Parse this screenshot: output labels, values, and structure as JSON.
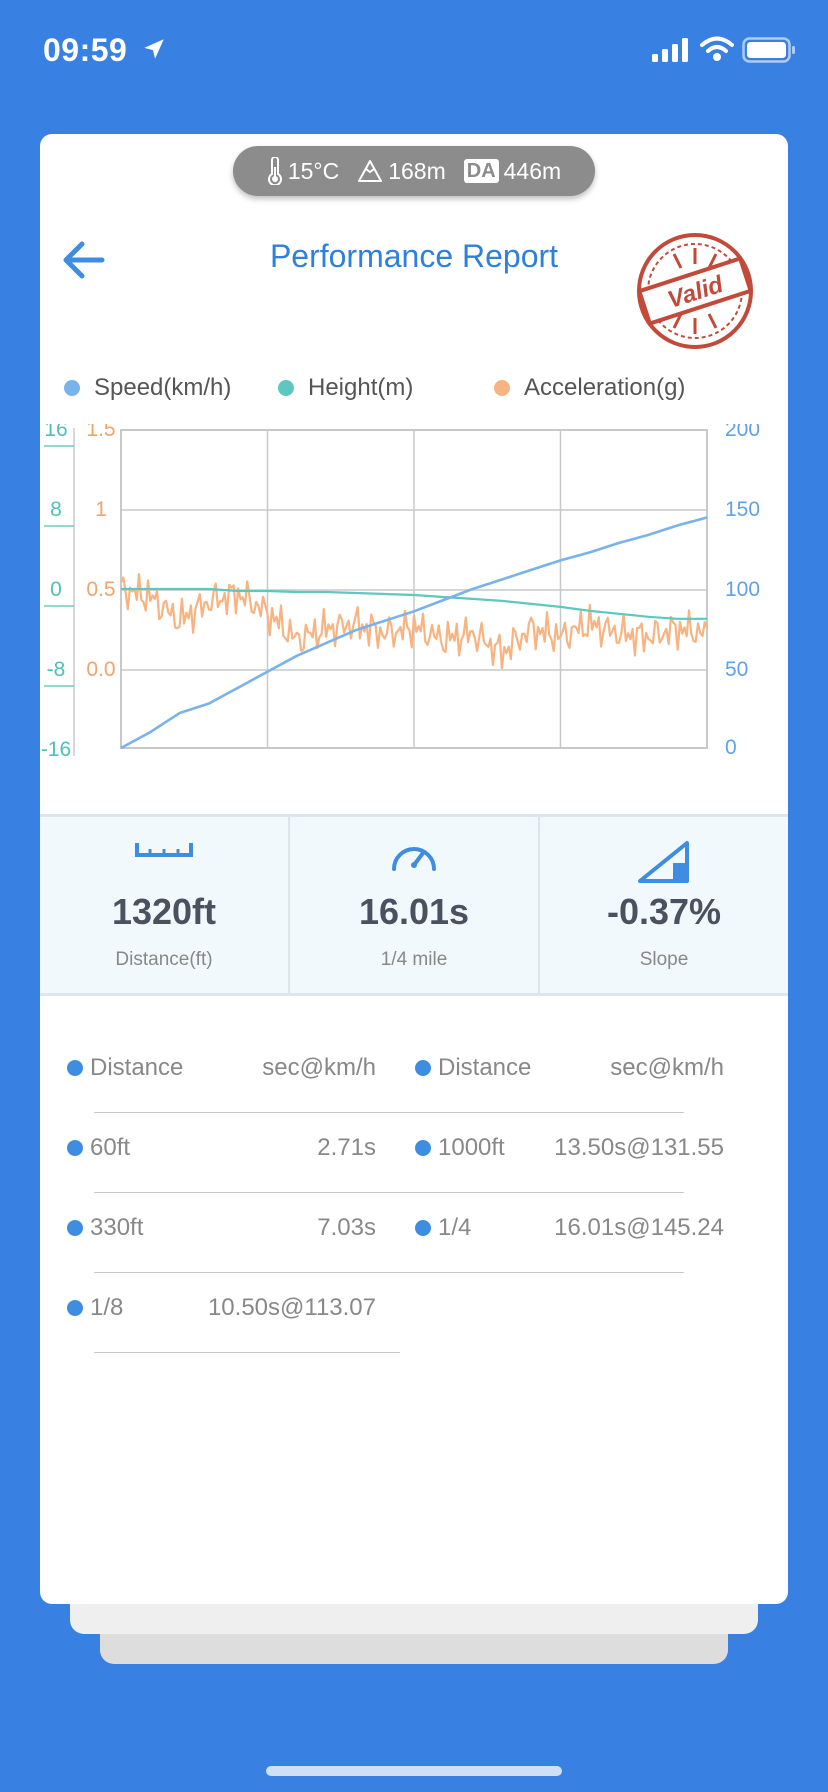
{
  "status_bar": {
    "time": "09:59"
  },
  "env": {
    "temperature": "15°C",
    "altitude": "168m",
    "da_label": "DA",
    "density_altitude": "446m"
  },
  "header": {
    "title": "Performance Report",
    "stamp_text": "Valid"
  },
  "colors": {
    "background": "#3880E2",
    "accent": "#2F7FDD",
    "speed": "#7AB2EA",
    "height": "#5DC7C0",
    "acceleration": "#F7B482"
  },
  "chart_data": {
    "type": "line",
    "legend": [
      "Speed(km/h)",
      "Height(m)",
      "Acceleration(g)"
    ],
    "axes": {
      "height_ticks": [
        "16",
        "8",
        "0",
        "-8",
        "-16"
      ],
      "acceleration_ticks": [
        "1.5",
        "1",
        "0.5",
        "0.0"
      ],
      "speed_ticks": [
        "200",
        "150",
        "100",
        "50",
        "0"
      ]
    },
    "ranges": {
      "speed": [
        0,
        200
      ],
      "height": [
        -16,
        16
      ],
      "acceleration": [
        -0.5,
        1.5
      ]
    },
    "grid": true,
    "x": [
      0,
      0.05,
      0.1,
      0.15,
      0.2,
      0.25,
      0.3,
      0.35,
      0.4,
      0.45,
      0.5,
      0.55,
      0.6,
      0.65,
      0.7,
      0.75,
      0.8,
      0.85,
      0.9,
      0.95,
      1.0
    ],
    "series": [
      {
        "name": "Speed(km/h)",
        "values": [
          0,
          10,
          22,
          28,
          38,
          48,
          58,
          66,
          74,
          80,
          86,
          93,
          100,
          106,
          112,
          118,
          123,
          129,
          134,
          140,
          145
        ]
      },
      {
        "name": "Height(m)",
        "values": [
          0,
          0,
          0,
          0,
          -0.2,
          -0.2,
          -0.3,
          -0.3,
          -0.4,
          -0.5,
          -0.6,
          -0.8,
          -1.0,
          -1.2,
          -1.5,
          -1.8,
          -2.2,
          -2.5,
          -2.8,
          -3.0,
          -3.0
        ]
      },
      {
        "name": "Acceleration(g)",
        "values": [
          0.5,
          0.45,
          0.3,
          0.42,
          0.47,
          0.35,
          0.18,
          0.25,
          0.28,
          0.22,
          0.26,
          0.18,
          0.22,
          0.1,
          0.25,
          0.2,
          0.28,
          0.22,
          0.2,
          0.25,
          0.22
        ]
      }
    ]
  },
  "stats": [
    {
      "value": "1320ft",
      "label": "Distance(ft)",
      "icon": "ruler-icon"
    },
    {
      "value": "16.01s",
      "label": "1/4 mile",
      "icon": "speedometer-icon"
    },
    {
      "value": "-0.37%",
      "label": "Slope",
      "icon": "slope-icon"
    }
  ],
  "splits": {
    "headers": [
      {
        "name": "Distance",
        "value": "sec@km/h"
      },
      {
        "name": "Distance",
        "value": "sec@km/h"
      }
    ],
    "rows": [
      {
        "name": "60ft",
        "value": "2.71s"
      },
      {
        "name": "1000ft",
        "value": "13.50s@131.55"
      },
      {
        "name": "330ft",
        "value": "7.03s"
      },
      {
        "name": "1/4",
        "value": "16.01s@145.24"
      },
      {
        "name": "1/8",
        "value": "10.50s@113.07"
      }
    ]
  }
}
